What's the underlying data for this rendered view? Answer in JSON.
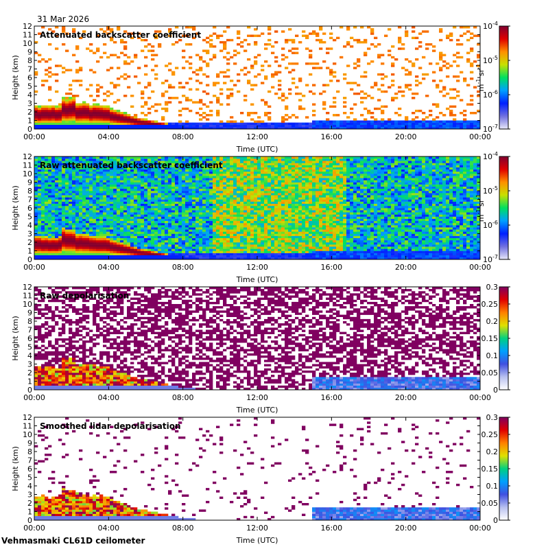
{
  "header": {
    "date": "31 Mar 2026"
  },
  "footer": {
    "instrument": "Vehmasmaki CL61D ceilometer"
  },
  "chart_data": [
    {
      "type": "heatmap",
      "title": "Attenuated backscatter coefficient",
      "xlabel": "Time (UTC)",
      "ylabel": "Height (km)",
      "x_ticks": [
        "00:00",
        "04:00",
        "08:00",
        "12:00",
        "16:00",
        "20:00",
        "00:00"
      ],
      "y_ticks": [
        0,
        1,
        2,
        3,
        4,
        5,
        6,
        7,
        8,
        9,
        10,
        11,
        12
      ],
      "ylim": [
        0,
        12
      ],
      "colorbar": {
        "scale": "log",
        "range": [
          1e-07,
          0.0001
        ],
        "unit": "m-1 sr-1",
        "tick_labels": [
          "10-7",
          "10-6",
          "10-5",
          "10-4"
        ]
      }
    },
    {
      "type": "heatmap",
      "title": "Raw attenuated backscatter coefficient",
      "xlabel": "Time (UTC)",
      "ylabel": "Height (km)",
      "x_ticks": [
        "00:00",
        "04:00",
        "08:00",
        "12:00",
        "16:00",
        "20:00",
        "00:00"
      ],
      "y_ticks": [
        0,
        1,
        2,
        3,
        4,
        5,
        6,
        7,
        8,
        9,
        10,
        11,
        12
      ],
      "ylim": [
        0,
        12
      ],
      "colorbar": {
        "scale": "log",
        "range": [
          1e-07,
          0.0001
        ],
        "unit": "m-1 sr-1",
        "tick_labels": [
          "10-7",
          "10-6",
          "10-5",
          "10-4"
        ]
      }
    },
    {
      "type": "heatmap",
      "title": "Raw depolarisation",
      "xlabel": "Time (UTC)",
      "ylabel": "Height (km)",
      "x_ticks": [
        "00:00",
        "04:00",
        "08:00",
        "12:00",
        "16:00",
        "20:00",
        "00:00"
      ],
      "y_ticks": [
        0,
        1,
        2,
        3,
        4,
        5,
        6,
        7,
        8,
        9,
        10,
        11,
        12
      ],
      "ylim": [
        0,
        12
      ],
      "colorbar": {
        "scale": "linear",
        "range": [
          0,
          0.3
        ],
        "tick_labels": [
          "0",
          "0.05",
          "0.1",
          "0.15",
          "0.2",
          "0.25",
          "0.3"
        ]
      }
    },
    {
      "type": "heatmap",
      "title": "Smoothed lidar depolarisation",
      "xlabel": "Time (UTC)",
      "ylabel": "Height (km)",
      "x_ticks": [
        "00:00",
        "04:00",
        "08:00",
        "12:00",
        "16:00",
        "20:00",
        "00:00"
      ],
      "y_ticks": [
        0,
        1,
        2,
        3,
        4,
        5,
        6,
        7,
        8,
        9,
        10,
        11,
        12
      ],
      "ylim": [
        0,
        12
      ],
      "colorbar": {
        "scale": "linear",
        "range": [
          0,
          0.3
        ],
        "tick_labels": [
          "0",
          "0.05",
          "0.1",
          "0.15",
          "0.2",
          "0.25",
          "0.3"
        ]
      }
    }
  ]
}
